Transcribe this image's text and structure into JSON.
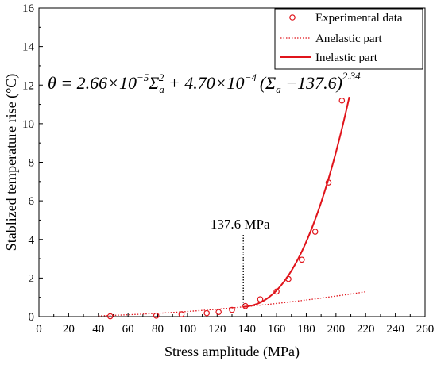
{
  "chart_data": {
    "type": "scatter",
    "xlabel": "Stress amplitude (MPa)",
    "ylabel": "Stablized temperature rise (°C)",
    "xlim": [
      0,
      260
    ],
    "ylim": [
      0,
      16
    ],
    "xticks": [
      0,
      20,
      40,
      60,
      80,
      100,
      120,
      140,
      160,
      180,
      200,
      220,
      240,
      260
    ],
    "yticks": [
      0,
      2,
      4,
      6,
      8,
      10,
      12,
      14,
      16
    ],
    "grid": false,
    "legend_position": "top-right",
    "legend": [
      {
        "label": "Experimental data",
        "style": "open-circle"
      },
      {
        "label": "Anelastic part",
        "style": "dotted-line"
      },
      {
        "label": "Inelastic part",
        "style": "solid-line"
      }
    ],
    "equation": {
      "lhs": "θ = 2.66×10",
      "exp1": "−5",
      "mid1": "Σ",
      "sub1": "a",
      "sup1": "2",
      "mid2": " + 4.70×10",
      "exp2": "−4",
      "mid3": "(Σ",
      "sub2": "a",
      "mid4": " −137.6)",
      "sup2": "2.34"
    },
    "threshold": {
      "x": 137.6,
      "label": "137.6 MPa"
    },
    "series": [
      {
        "name": "Experimental data",
        "color": "#e0141b",
        "points": [
          [
            48,
            0.02
          ],
          [
            79,
            0.05
          ],
          [
            96,
            0.12
          ],
          [
            113,
            0.18
          ],
          [
            121,
            0.24
          ],
          [
            130,
            0.35
          ],
          [
            139,
            0.55
          ],
          [
            149,
            0.9
          ],
          [
            160,
            1.3
          ],
          [
            168,
            1.95
          ],
          [
            177,
            2.95
          ],
          [
            186,
            4.4
          ],
          [
            195,
            6.95
          ],
          [
            204,
            11.2
          ]
        ]
      },
      {
        "name": "Anelastic part",
        "color": "#e0141b",
        "formula": "2.66e-5 * x^2",
        "x_range": [
          40,
          220
        ]
      },
      {
        "name": "Inelastic part",
        "color": "#e0141b",
        "formula": "2.66e-5 * x^2 + 4.70e-4 * (x - 137.6)^2.34",
        "x_range": [
          137.6,
          209
        ]
      }
    ]
  }
}
